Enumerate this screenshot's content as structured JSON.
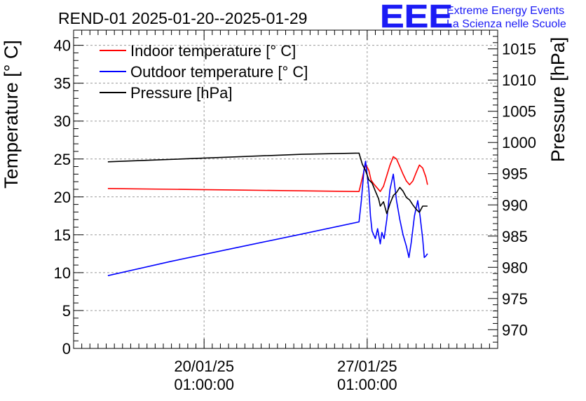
{
  "chart_data": {
    "type": "line",
    "title": "REND-01 2025-01-20--2025-01-29",
    "ylabel": "Temperature [° C]",
    "y2label": "Pressure [hPa]",
    "xlabel": "",
    "ylim": [
      0,
      42
    ],
    "y2lim": [
      967,
      1018
    ],
    "xlim": [
      0,
      13
    ],
    "grid": true,
    "legend_position": "top-left",
    "x_tick_labels": [
      {
        "x": 4,
        "line1": "20/01/25",
        "line2": "01:00:00"
      },
      {
        "x": 9,
        "line1": "27/01/25",
        "line2": "01:00:00"
      }
    ],
    "y_ticks": [
      0,
      5,
      10,
      15,
      20,
      25,
      30,
      35,
      40
    ],
    "y2_ticks": [
      970,
      975,
      980,
      985,
      990,
      995,
      1000,
      1005,
      1010,
      1015
    ],
    "series": [
      {
        "name": "Indoor temperature [° C]",
        "axis": "left",
        "color": "#ff0000",
        "points": [
          [
            1.05,
            21.1
          ],
          [
            3,
            21.0
          ],
          [
            5,
            20.9
          ],
          [
            7,
            20.8
          ],
          [
            8.75,
            20.7
          ],
          [
            8.85,
            22.5
          ],
          [
            8.95,
            24.3
          ],
          [
            9.05,
            23.5
          ],
          [
            9.12,
            22.2
          ],
          [
            9.2,
            21.7
          ],
          [
            9.3,
            21.2
          ],
          [
            9.4,
            20.7
          ],
          [
            9.5,
            21.4
          ],
          [
            9.6,
            22.8
          ],
          [
            9.7,
            24.2
          ],
          [
            9.8,
            25.3
          ],
          [
            9.9,
            25.0
          ],
          [
            10.0,
            24.0
          ],
          [
            10.1,
            23.0
          ],
          [
            10.2,
            22.1
          ],
          [
            10.3,
            21.6
          ],
          [
            10.4,
            22.1
          ],
          [
            10.5,
            23.2
          ],
          [
            10.6,
            24.2
          ],
          [
            10.7,
            23.8
          ],
          [
            10.8,
            22.6
          ],
          [
            10.85,
            21.6
          ]
        ]
      },
      {
        "name": "Outdoor temperature [° C]",
        "axis": "left",
        "color": "#0000ff",
        "points": [
          [
            1.05,
            9.6
          ],
          [
            3,
            11.5
          ],
          [
            5,
            13.3
          ],
          [
            7,
            15.1
          ],
          [
            8.75,
            16.7
          ],
          [
            8.82,
            19.5
          ],
          [
            8.9,
            23.5
          ],
          [
            8.95,
            24.7
          ],
          [
            9.05,
            21.0
          ],
          [
            9.1,
            17.5
          ],
          [
            9.15,
            15.5
          ],
          [
            9.25,
            14.5
          ],
          [
            9.32,
            15.8
          ],
          [
            9.4,
            13.8
          ],
          [
            9.45,
            15.3
          ],
          [
            9.52,
            14.5
          ],
          [
            9.6,
            17.0
          ],
          [
            9.7,
            21.0
          ],
          [
            9.8,
            23.0
          ],
          [
            9.9,
            19.5
          ],
          [
            10.0,
            17.0
          ],
          [
            10.1,
            15.0
          ],
          [
            10.2,
            13.5
          ],
          [
            10.28,
            12.0
          ],
          [
            10.35,
            14.0
          ],
          [
            10.45,
            17.5
          ],
          [
            10.55,
            19.5
          ],
          [
            10.62,
            17.5
          ],
          [
            10.7,
            14.5
          ],
          [
            10.75,
            12.0
          ],
          [
            10.8,
            12.2
          ],
          [
            10.85,
            12.5
          ]
        ]
      },
      {
        "name": "Pressure [hPa]",
        "axis": "right",
        "color": "#000000",
        "points": [
          [
            1.05,
            996.9
          ],
          [
            3,
            997.3
          ],
          [
            5,
            997.7
          ],
          [
            7,
            998.1
          ],
          [
            8.75,
            998.3
          ],
          [
            8.85,
            996.5
          ],
          [
            8.95,
            995.5
          ],
          [
            9.05,
            994.0
          ],
          [
            9.15,
            993.5
          ],
          [
            9.25,
            992.2
          ],
          [
            9.35,
            991.0
          ],
          [
            9.4,
            989.8
          ],
          [
            9.5,
            990.5
          ],
          [
            9.6,
            988.6
          ],
          [
            9.7,
            990.2
          ],
          [
            9.8,
            991.5
          ],
          [
            9.9,
            992.0
          ],
          [
            10.0,
            992.8
          ],
          [
            10.1,
            992.2
          ],
          [
            10.2,
            991.2
          ],
          [
            10.3,
            990.8
          ],
          [
            10.4,
            990.0
          ],
          [
            10.5,
            989.3
          ],
          [
            10.6,
            988.8
          ],
          [
            10.7,
            989.8
          ],
          [
            10.85,
            989.8
          ]
        ]
      }
    ]
  },
  "branding": {
    "logo_text": "EEE",
    "line1": "Extreme Energy Events",
    "line2": "La Scienza nelle Scuole",
    "color": "#1b1bf5"
  }
}
